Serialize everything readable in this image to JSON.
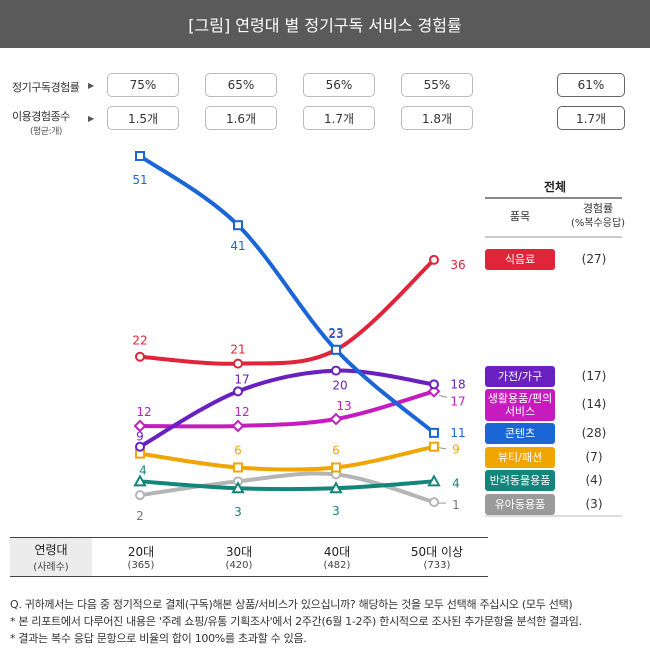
{
  "title": "[그림] 연령대 별 정기구독 서비스 경험률",
  "rows": {
    "experience_label": "정기구독경험률",
    "count_label": "이용경험종수",
    "count_sublabel": "(평균:개)",
    "experience_values": [
      "75%",
      "65%",
      "56%",
      "55%"
    ],
    "count_values": [
      "1.5개",
      "1.6개",
      "1.7개",
      "1.8개"
    ],
    "total_experience": "61%",
    "total_count": "1.7개"
  },
  "legend": {
    "title": "전체",
    "col_item": "품목",
    "col_rate": "경험률",
    "col_rate_sub": "(%복수응답)"
  },
  "bottom": {
    "header": "연령대",
    "header_sub": "(사례수)",
    "groups": [
      {
        "label": "20대",
        "n": "(365)"
      },
      {
        "label": "30대",
        "n": "(420)"
      },
      {
        "label": "40대",
        "n": "(482)"
      },
      {
        "label": "50대 이상",
        "n": "(733)"
      }
    ]
  },
  "footnotes": [
    "Q. 귀하께서는 다음 중 정기적으로 결제(구독)해본 상품/서비스가 있으십니까? 해당하는 것을 모두 선택해 주십시오 (모두 선택)",
    "* 본 리포트에서 다루어진 내용은 '주례 쇼핑/유통 기획조사'에서 2주간(6월 1-2주) 한시적으로 조사된 추가문항을 분석한 결과임.",
    "* 결과는 복수 응답 문항으로 비율의 합이 100%를 초과할 수 있음."
  ],
  "chart_data": {
    "type": "line",
    "categories": [
      "20대",
      "30대",
      "40대",
      "50대 이상"
    ],
    "series": [
      {
        "name": "식음료",
        "values": [
          22,
          21,
          23,
          36
        ],
        "total": "(27)",
        "color": "#e0243a",
        "marker": "circle"
      },
      {
        "name": "가전/가구",
        "values": [
          9,
          17,
          20,
          18
        ],
        "total": "(17)",
        "color": "#6a1fc0",
        "marker": "circle"
      },
      {
        "name": "생활용품/편의서비스",
        "values": [
          12,
          12,
          13,
          17
        ],
        "total": "(14)",
        "color": "#c61cbf",
        "marker": "diamond"
      },
      {
        "name": "콘텐츠",
        "values": [
          51,
          41,
          23,
          11
        ],
        "total": "(28)",
        "color": "#1a66d6",
        "marker": "square"
      },
      {
        "name": "뷰티/패션",
        "values": [
          8,
          6,
          6,
          9
        ],
        "total": "(7)",
        "color": "#f0a500",
        "marker": "square"
      },
      {
        "name": "반려동물용품",
        "values": [
          4,
          3,
          3,
          4
        ],
        "total": "(4)",
        "color": "#14857a",
        "marker": "triangle"
      },
      {
        "name": "유아동용품",
        "values": [
          2,
          4,
          5,
          1
        ],
        "total": "(3)",
        "color": "#b5b5b5",
        "marker": "circle"
      }
    ],
    "value_labels": [
      [
        "22",
        "21",
        "23",
        "36"
      ],
      [
        "9",
        "17",
        "20",
        "18"
      ],
      [
        "12",
        "12",
        "13",
        "17"
      ],
      [
        "51",
        "41",
        "23",
        "11"
      ],
      [
        "",
        "6",
        "6",
        "9"
      ],
      [
        "4",
        "3",
        "3",
        "4"
      ],
      [
        "2",
        "",
        "",
        "1"
      ]
    ],
    "ylim": [
      0,
      52
    ]
  }
}
